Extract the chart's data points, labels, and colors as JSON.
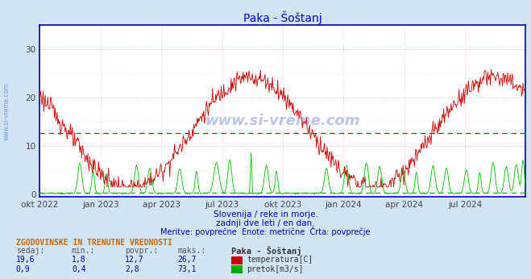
{
  "title": "Paka - Šoštanj",
  "bg_color": "#d0e4f4",
  "plot_bg_color": "#ffffff",
  "grid_color_major": "#ffaaaa",
  "grid_color_minor": "#ffdddd",
  "temp_color": "#cc0000",
  "flow_color": "#00bb00",
  "avg_temp_dashed_color": "#cc0000",
  "avg_flow_dashed_color": "#00bb00",
  "avg_temp_value": 12.7,
  "avg_flow_value": 2.8,
  "flow_display_scale": 0.115,
  "y_min": -0.5,
  "y_max": 35,
  "y_ticks": [
    0,
    10,
    20,
    30
  ],
  "subtitle1": "Slovenija / reke in morje.",
  "subtitle2": "zadnji dve leti / en dan.",
  "subtitle3": "Meritve: povprečne  Enote: metrične  Črta: povprečje",
  "table_header": "ZGODOVINSKE IN TRENUTNE VREDNOSTI",
  "col_sedaj": "sedaj:",
  "col_min": "min.:",
  "col_povpr": "povpr.:",
  "col_maks": "maks.:",
  "station_name": "Paka - Šoštanj",
  "temp_sedaj": "19,6",
  "temp_min": "1,8",
  "temp_povpr": "12,7",
  "temp_maks": "26,7",
  "flow_sedaj": "0,9",
  "flow_min": "0,4",
  "flow_povpr": "2,8",
  "flow_maks": "73,1",
  "temp_label": "temperatura[C]",
  "flow_label": "pretok[m3/s]",
  "watermark": "www.si-vreme.com",
  "left_label": "www.si-vreme.com",
  "x_tick_labels": [
    "okt 2022",
    "jan 2023",
    "apr 2023",
    "jul 2023",
    "okt 2023",
    "jan 2024",
    "apr 2024",
    "jul 2024"
  ],
  "x_tick_positions": [
    0.0,
    0.125,
    0.25,
    0.375,
    0.5,
    0.625,
    0.75,
    0.875
  ]
}
